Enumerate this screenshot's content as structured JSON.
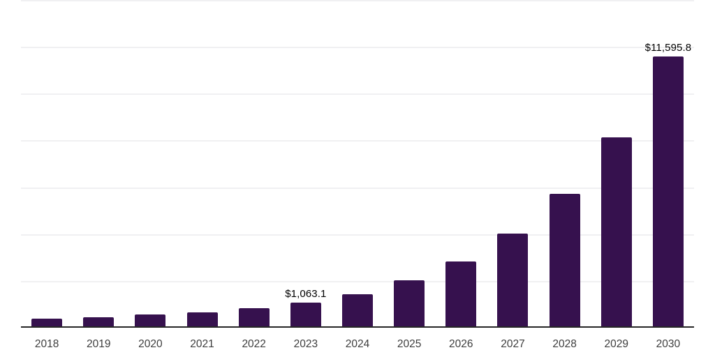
{
  "chart_data": {
    "type": "bar",
    "title": "",
    "xlabel": "",
    "ylabel": "",
    "categories": [
      "2018",
      "2019",
      "2020",
      "2021",
      "2022",
      "2023",
      "2024",
      "2025",
      "2026",
      "2027",
      "2028",
      "2029",
      "2030"
    ],
    "values": [
      380,
      460,
      560,
      660,
      840,
      1063.1,
      1440,
      2030,
      2840,
      4030,
      5720,
      8120,
      11595.8
    ],
    "value_labels": [
      "",
      "",
      "",
      "",
      "",
      "$1,063.1",
      "",
      "",
      "",
      "",
      "",
      "",
      "$11,595.8"
    ],
    "ylim": [
      0,
      14000
    ],
    "grid_interval": 2000,
    "grid": true,
    "legend": false,
    "y_axis_labels_shown": false,
    "bar_color": "#36114E"
  },
  "colors": {
    "bar": "#36114E",
    "axis_line": "#262626",
    "gridline": "#f0f0f2",
    "tick_text": "#3d3d3d",
    "value_label_text": "#000000",
    "background": "#ffffff"
  }
}
